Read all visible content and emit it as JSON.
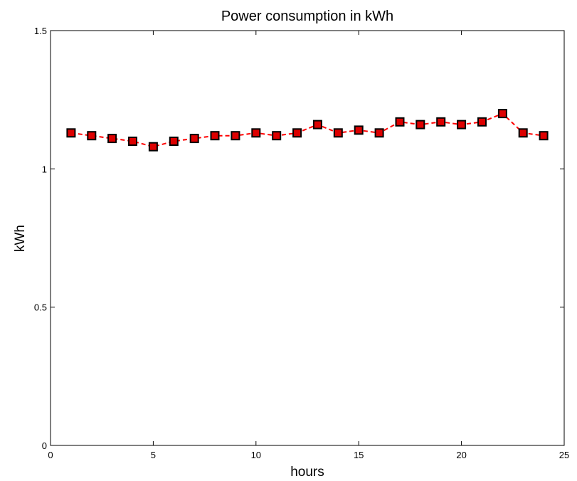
{
  "chart_data": {
    "type": "line",
    "title": "Power consumption in kWh",
    "xlabel": "hours",
    "ylabel": "kWh",
    "xlim": [
      0,
      25
    ],
    "ylim": [
      0,
      1.5
    ],
    "xticks": [
      0,
      5,
      10,
      15,
      20,
      25
    ],
    "yticks": [
      0,
      0.5,
      1,
      1.5
    ],
    "xtick_labels": [
      "0",
      "5",
      "10",
      "15",
      "20",
      "25"
    ],
    "ytick_labels": [
      "0",
      "0.5",
      "1",
      "1.5"
    ],
    "grid": false,
    "series": [
      {
        "color": "#ff0000",
        "marker": "square",
        "marker_fill": "#dd0000",
        "marker_edge": "#000000",
        "line_style": "dashed",
        "x": [
          1,
          2,
          3,
          4,
          5,
          6,
          7,
          8,
          9,
          10,
          11,
          12,
          13,
          14,
          15,
          16,
          17,
          18,
          19,
          20,
          21,
          22,
          23,
          24
        ],
        "y": [
          1.13,
          1.12,
          1.11,
          1.1,
          1.08,
          1.1,
          1.11,
          1.12,
          1.12,
          1.13,
          1.12,
          1.13,
          1.16,
          1.13,
          1.14,
          1.13,
          1.17,
          1.16,
          1.17,
          1.16,
          1.17,
          1.2,
          1.13,
          1.12
        ]
      }
    ]
  }
}
